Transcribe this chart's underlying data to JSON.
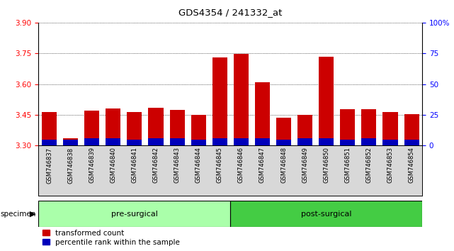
{
  "title": "GDS4354 / 241332_at",
  "samples": [
    "GSM746837",
    "GSM746838",
    "GSM746839",
    "GSM746840",
    "GSM746841",
    "GSM746842",
    "GSM746843",
    "GSM746844",
    "GSM746845",
    "GSM746846",
    "GSM746847",
    "GSM746848",
    "GSM746849",
    "GSM746850",
    "GSM746851",
    "GSM746852",
    "GSM746853",
    "GSM746854"
  ],
  "transformed_count": [
    3.465,
    3.335,
    3.47,
    3.48,
    3.462,
    3.483,
    3.473,
    3.45,
    3.73,
    3.748,
    3.608,
    3.435,
    3.45,
    3.735,
    3.478,
    3.478,
    3.462,
    3.455
  ],
  "percentile_rank_pct": [
    5,
    5,
    6,
    6,
    5,
    6,
    6,
    5,
    6,
    6,
    6,
    5,
    6,
    6,
    5,
    6,
    5,
    5
  ],
  "ymin": 3.3,
  "ymax": 3.9,
  "yticks": [
    3.3,
    3.45,
    3.6,
    3.75,
    3.9
  ],
  "right_yticks": [
    0,
    25,
    50,
    75,
    100
  ],
  "bar_color_red": "#CC0000",
  "bar_color_blue": "#0000BB",
  "bar_width": 0.7,
  "pre_surgical_color": "#AAFFAA",
  "post_surgical_color": "#44CC44",
  "legend_red_label": "transformed count",
  "legend_blue_label": "percentile rank within the sample",
  "n_pre": 9,
  "n_post": 9
}
